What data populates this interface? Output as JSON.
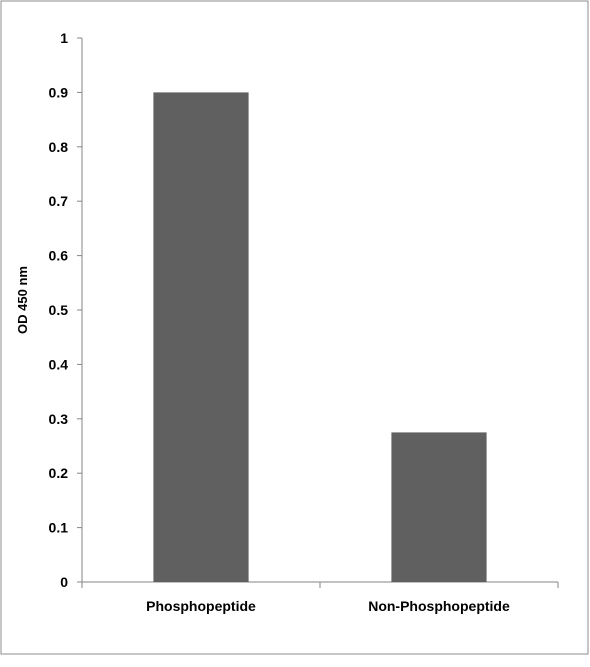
{
  "chart_data": {
    "type": "bar",
    "categories": [
      "Phosphopeptide",
      "Non-Phosphopeptide"
    ],
    "values": [
      0.9,
      0.275
    ],
    "title": "",
    "xlabel": "",
    "ylabel": "OD 450 nm",
    "ylim": [
      0,
      1
    ],
    "y_ticks": [
      "0",
      "0.1",
      "0.2",
      "0.3",
      "0.4",
      "0.5",
      "0.6",
      "0.7",
      "0.8",
      "0.9",
      "1"
    ],
    "grid": false,
    "legend": "none",
    "bar_color": "#606060",
    "axis_color": "#868686",
    "frame_color": "#8c8c8c"
  }
}
